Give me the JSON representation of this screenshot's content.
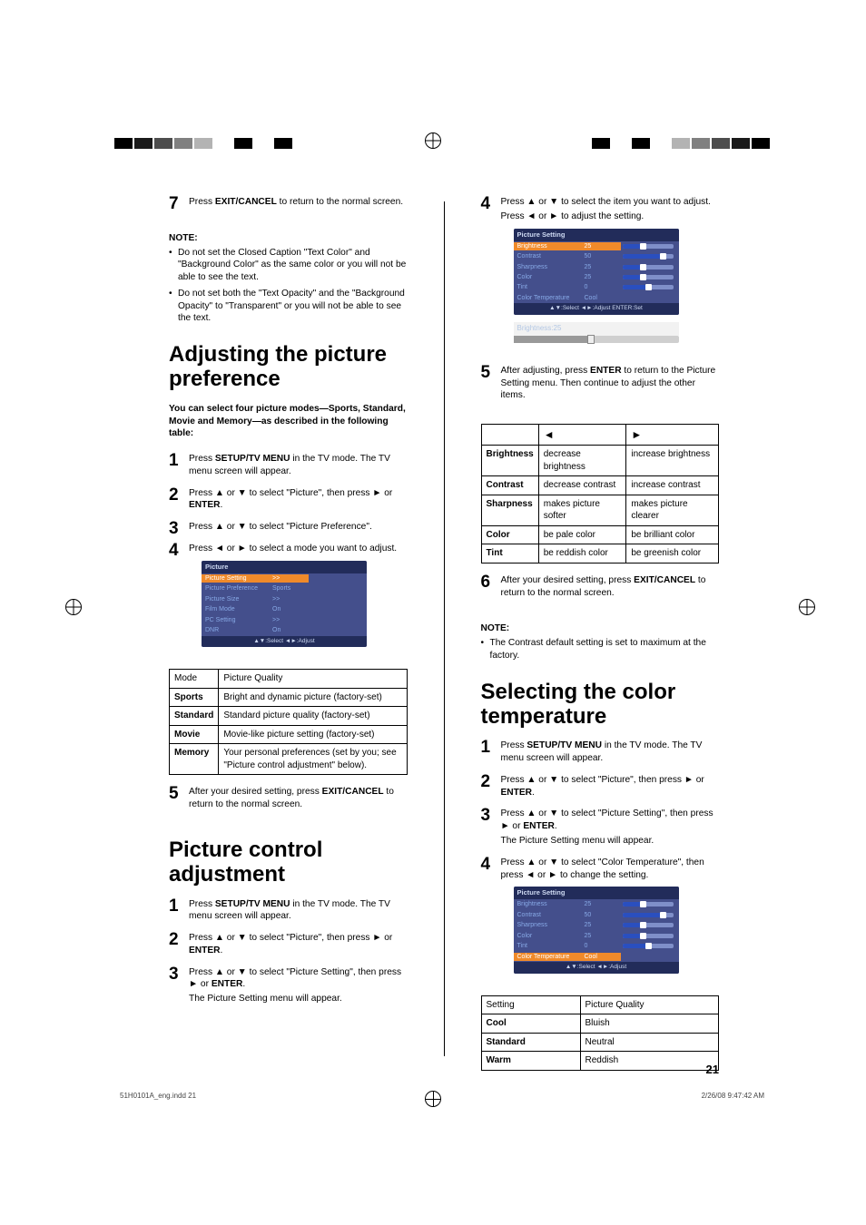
{
  "top_bars": [
    "#000000",
    "#1a1a1a",
    "#4d4d4d",
    "#808080",
    "#b3b3b3",
    "#ffffff",
    "#000000",
    "#ffffff",
    "#000000",
    "#ffffff",
    "#ffffff",
    "#ffffff"
  ],
  "leftcol": {
    "step7": {
      "num": "7",
      "text_a": "Press ",
      "bold": "EXIT/CANCEL",
      "text_b": " to return to the normal screen."
    },
    "note_head": "NOTE:",
    "note_items": [
      "Do not set the Closed Caption \"Text Color\" and \"Background Color\" as the same color or you will not be able to see the text.",
      "Do not set both the \"Text Opacity\" and the \"Background Opacity\" to \"Transparent\" or you will not be able to see the text."
    ],
    "section1": "Adjusting the picture preference",
    "intro": "You can select four picture modes—Sports, Standard, Movie and Memory—as described in the following table:",
    "steps_a": [
      {
        "pre": "Press ",
        "b": "SETUP/TV MENU",
        "post": " in the TV mode. The TV menu screen will appear."
      },
      {
        "pre": "Press ▲ or ▼ to select \"Picture\", then press ► or ",
        "b": "ENTER",
        "post": "."
      },
      {
        "pre": "Press ▲ or ▼ to select \"Picture Preference\".",
        "b": "",
        "post": ""
      },
      {
        "pre": "Press ◄ or ► to select a mode you want to adjust.",
        "b": "",
        "post": ""
      }
    ],
    "osd1": {
      "title": "Picture",
      "rows": [
        {
          "k": "Picture Setting",
          "v": ">>",
          "sel": true
        },
        {
          "k": "Picture Preference",
          "v": "Sports",
          "sel": false
        },
        {
          "k": "Picture Size",
          "v": ">>",
          "sel": false
        },
        {
          "k": "Film Mode",
          "v": "On",
          "sel": false
        },
        {
          "k": "PC Setting",
          "v": ">>",
          "sel": false
        },
        {
          "k": "DNR",
          "v": "On",
          "sel": false
        }
      ],
      "foot": "▲▼:Select   ◄►:Adjust"
    },
    "mode_table": {
      "head": [
        "Mode",
        "Picture Quality"
      ],
      "rows": [
        [
          "Sports",
          "Bright and dynamic picture (factory-set)"
        ],
        [
          "Standard",
          "Standard picture quality (factory-set)"
        ],
        [
          "Movie",
          "Movie-like picture setting (factory-set)"
        ],
        [
          "Memory",
          "Your personal preferences (set by you; see \"Picture control adjustment\" below)."
        ]
      ]
    },
    "step5": {
      "num": "5",
      "pre": "After your desired setting, press ",
      "b": "EXIT/CANCEL",
      "post": " to return to the normal screen."
    },
    "section2": "Picture control adjustment",
    "steps_b": [
      {
        "pre": "Press ",
        "b": "SETUP/TV MENU",
        "post": " in the TV mode. The TV menu screen will appear."
      },
      {
        "pre": "Press ▲ or ▼ to select \"Picture\", then press ► or ",
        "b": "ENTER",
        "post": "."
      },
      {
        "pre": "Press ▲ or ▼ to select \"Picture Setting\", then press ► or ",
        "b": "ENTER",
        "post": ".",
        "extra": "The Picture Setting menu will appear."
      }
    ]
  },
  "rightcol": {
    "step4": {
      "num": "4",
      "l1": "Press ▲ or ▼ to select the item you want to adjust.",
      "l2": "Press ◄ or ► to adjust the setting."
    },
    "osd2": {
      "title": "Picture Setting",
      "rows": [
        {
          "k": "Brightness",
          "v": "25",
          "fill": 40,
          "sel": true
        },
        {
          "k": "Contrast",
          "v": "50",
          "fill": 80,
          "sel": false
        },
        {
          "k": "Sharpness",
          "v": "25",
          "fill": 40,
          "sel": false
        },
        {
          "k": "Color",
          "v": "25",
          "fill": 40,
          "sel": false
        },
        {
          "k": "Tint",
          "v": "0",
          "fill": 50,
          "sel": false
        },
        {
          "k": "Color Temperature",
          "v": "Cool",
          "sel": false
        }
      ],
      "foot": "▲▼:Select  ◄►:Adjust  ENTER:Set"
    },
    "strip_label": "Brightness:25",
    "step5": {
      "num": "5",
      "pre": "After adjusting, press ",
      "b": "ENTER",
      "post": " to return to the Picture Setting menu. Then continue to adjust the other items."
    },
    "tri_table": {
      "head": [
        "",
        "◄",
        "►"
      ],
      "rows": [
        [
          "Brightness",
          "decrease brightness",
          "increase brightness"
        ],
        [
          "Contrast",
          "decrease contrast",
          "increase contrast"
        ],
        [
          "Sharpness",
          "makes picture softer",
          "makes picture clearer"
        ],
        [
          "Color",
          "be pale color",
          "be brilliant color"
        ],
        [
          "Tint",
          "be reddish color",
          "be greenish color"
        ]
      ]
    },
    "step6": {
      "num": "6",
      "pre": "After your desired setting, press ",
      "b": "EXIT/CANCEL",
      "post": " to return to the normal screen."
    },
    "note_head": "NOTE:",
    "note_items": [
      "The Contrast default setting is set to maximum at the factory."
    ],
    "section3": "Selecting the color temperature",
    "steps_c": [
      {
        "pre": "Press ",
        "b": "SETUP/TV MENU",
        "post": " in the TV mode. The TV menu screen will appear."
      },
      {
        "pre": "Press ▲ or ▼ to select \"Picture\", then press ► or ",
        "b": "ENTER",
        "post": "."
      },
      {
        "pre": "Press ▲ or ▼ to select \"Picture Setting\", then press ► or ",
        "b": "ENTER",
        "post": ".",
        "extra": "The Picture Setting menu will appear."
      },
      {
        "pre": "Press ▲ or ▼ to select \"Color Temperature\", then press ◄ or ► to change the setting.",
        "b": "",
        "post": ""
      }
    ],
    "osd3": {
      "title": "Picture Setting",
      "rows": [
        {
          "k": "Brightness",
          "v": "25",
          "fill": 40,
          "sel": false
        },
        {
          "k": "Contrast",
          "v": "50",
          "fill": 80,
          "sel": false
        },
        {
          "k": "Sharpness",
          "v": "25",
          "fill": 40,
          "sel": false
        },
        {
          "k": "Color",
          "v": "25",
          "fill": 40,
          "sel": false
        },
        {
          "k": "Tint",
          "v": "0",
          "fill": 50,
          "sel": false
        },
        {
          "k": "Color Temperature",
          "v": "Cool",
          "sel": true
        }
      ],
      "foot": "▲▼:Select  ◄►:Adjust"
    },
    "ct_table": {
      "head": [
        "Setting",
        "Picture Quality"
      ],
      "rows": [
        [
          "Cool",
          "Bluish"
        ],
        [
          "Standard",
          "Neutral"
        ],
        [
          "Warm",
          "Reddish"
        ]
      ]
    }
  },
  "pagenum": "21",
  "footer_left": "51H0101A_eng.indd   21",
  "footer_right": "2/26/08   9:47:42 AM"
}
